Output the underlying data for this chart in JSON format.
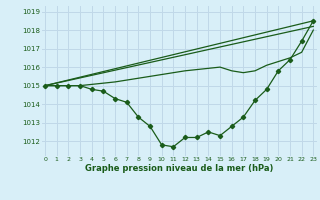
{
  "title": "Graphe pression niveau de la mer (hPa)",
  "background_color": "#d8eff8",
  "grid_color": "#c0d8e8",
  "line_color": "#1a5c1a",
  "ylim": [
    1011.2,
    1019.3
  ],
  "xlim": [
    -0.3,
    23.3
  ],
  "yticks": [
    1012,
    1013,
    1014,
    1015,
    1016,
    1017,
    1018,
    1019
  ],
  "xticks": [
    0,
    1,
    2,
    3,
    4,
    5,
    6,
    7,
    8,
    9,
    10,
    11,
    12,
    13,
    14,
    15,
    16,
    17,
    18,
    19,
    20,
    21,
    22,
    23
  ],
  "series": [
    {
      "x": [
        0,
        23
      ],
      "y": [
        1015.0,
        1018.5
      ],
      "marker": false
    },
    {
      "x": [
        0,
        23
      ],
      "y": [
        1015.0,
        1018.2
      ],
      "marker": false
    },
    {
      "x": [
        0,
        3,
        6,
        9,
        12,
        15,
        16,
        17,
        18,
        19,
        20,
        21,
        22,
        23
      ],
      "y": [
        1015.0,
        1015.0,
        1015.2,
        1015.5,
        1015.8,
        1016.0,
        1015.8,
        1015.7,
        1015.8,
        1016.1,
        1016.3,
        1016.5,
        1016.8,
        1018.0
      ],
      "marker": false
    },
    {
      "x": [
        0,
        1,
        2,
        3,
        4,
        5,
        6,
        7,
        8,
        9,
        10,
        11,
        12,
        13,
        14,
        15,
        16,
        17,
        18,
        19,
        20,
        21,
        22,
        23
      ],
      "y": [
        1015.0,
        1015.0,
        1015.0,
        1015.0,
        1014.8,
        1014.7,
        1014.3,
        1014.1,
        1013.3,
        1012.8,
        1011.8,
        1011.7,
        1012.2,
        1012.2,
        1012.5,
        1012.3,
        1012.8,
        1013.3,
        1014.2,
        1014.8,
        1015.8,
        1016.4,
        1017.4,
        1018.5
      ],
      "marker": true
    }
  ]
}
